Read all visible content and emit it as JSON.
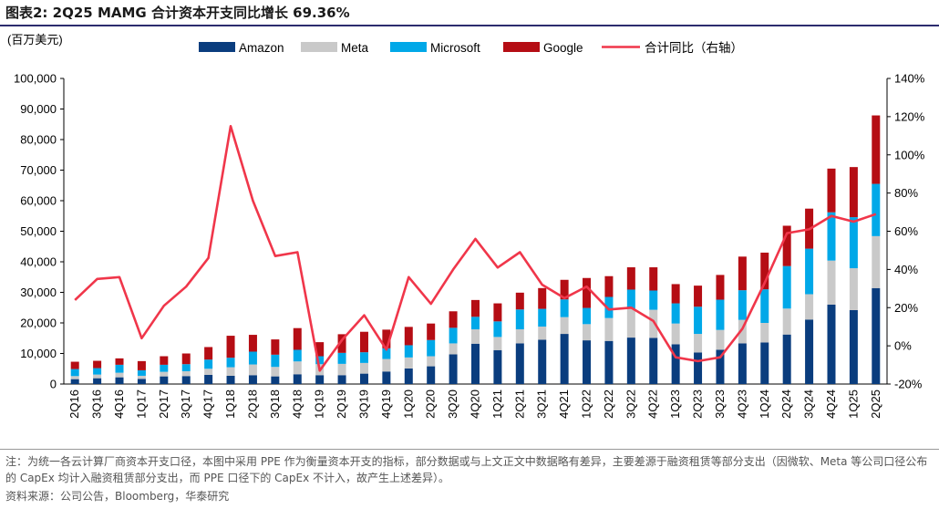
{
  "title": "图表2:   2Q25 MAMG 合计资本开支同比增长 69.36%",
  "note": "注：为统一各云计算厂商资本开支口径，本图中采用 PPE 作为衡量资本开支的指标，部分数据或与上文正文中数据略有差异，主要差源于融资租赁等部分支出（因微软、Meta 等公司口径公布的 CapEx 均计入融资租赁部分支出，而 PPE 口径下的 CapEx 不计入，故产生上述差异）。",
  "source": "资料来源：公司公告，Bloomberg，华泰研究",
  "colors": {
    "Amazon": "#0a3d7e",
    "Meta": "#c9c9c9",
    "Microsoft": "#00a8e8",
    "Google": "#b50d14",
    "yoy": "#f0364a"
  },
  "chart_data": {
    "type": "bar",
    "stacked": true,
    "unit_label": "(百万美元)",
    "categories": [
      "2Q16",
      "3Q16",
      "4Q16",
      "1Q17",
      "2Q17",
      "3Q17",
      "4Q17",
      "1Q18",
      "2Q18",
      "3Q18",
      "4Q18",
      "1Q19",
      "2Q19",
      "3Q19",
      "4Q19",
      "1Q20",
      "2Q20",
      "3Q20",
      "4Q20",
      "1Q21",
      "2Q21",
      "3Q21",
      "4Q21",
      "1Q22",
      "2Q22",
      "3Q22",
      "4Q22",
      "1Q23",
      "2Q23",
      "3Q23",
      "4Q23",
      "1Q24",
      "2Q24",
      "3Q24",
      "4Q24",
      "1Q25",
      "2Q25"
    ],
    "series": [
      {
        "name": "Amazon",
        "values": [
          1600,
          1900,
          2200,
          1700,
          2500,
          2600,
          3000,
          2700,
          2900,
          2500,
          3200,
          2900,
          2900,
          3400,
          4100,
          5100,
          5800,
          9700,
          13200,
          11100,
          13300,
          14500,
          16400,
          14300,
          14100,
          15200,
          15100,
          13000,
          10300,
          11200,
          13300,
          13600,
          16200,
          21100,
          26000,
          24200,
          31400
        ]
      },
      {
        "name": "Meta",
        "values": [
          1000,
          1200,
          1500,
          1000,
          1500,
          1600,
          2000,
          2800,
          3500,
          3100,
          4200,
          3600,
          3700,
          3500,
          4100,
          3600,
          3300,
          3600,
          4700,
          4300,
          4600,
          4300,
          5500,
          5300,
          7500,
          9400,
          9200,
          6800,
          6100,
          6500,
          7700,
          6400,
          8500,
          8300,
          14400,
          13700,
          17000
        ]
      },
      {
        "name": "Microsoft",
        "values": [
          2300,
          2100,
          2600,
          1800,
          2300,
          2300,
          3000,
          3100,
          4200,
          4000,
          3800,
          2600,
          3600,
          3500,
          3500,
          4000,
          5300,
          5100,
          4100,
          5100,
          6500,
          5800,
          5800,
          5300,
          6900,
          6300,
          6300,
          6600,
          8900,
          9900,
          9700,
          11000,
          13900,
          14900,
          15800,
          16700,
          17100
        ]
      },
      {
        "name": "Google",
        "values": [
          2400,
          2400,
          2100,
          3000,
          2800,
          3500,
          4100,
          7200,
          5500,
          5000,
          7100,
          4600,
          6100,
          6700,
          6100,
          6000,
          5400,
          5400,
          5500,
          5900,
          5500,
          6800,
          6400,
          9800,
          6800,
          7300,
          7600,
          6300,
          6900,
          8100,
          11000,
          12000,
          13200,
          13100,
          14300,
          16400,
          22400
        ]
      }
    ],
    "yoy_series": {
      "name": "合计同比（右轴）",
      "values": [
        24,
        35,
        36,
        4,
        21,
        31,
        46,
        115,
        76,
        47,
        49,
        -13,
        3,
        16,
        -2,
        36,
        22,
        40,
        56,
        41,
        49,
        32,
        25,
        31,
        19,
        20,
        13,
        -6,
        -8,
        -6,
        9,
        33,
        59,
        61,
        68,
        65,
        69
      ]
    },
    "ylim": [
      0,
      100000
    ],
    "y_ticks": [
      "0",
      "10,000",
      "20,000",
      "30,000",
      "40,000",
      "50,000",
      "60,000",
      "70,000",
      "80,000",
      "90,000",
      "100,000"
    ],
    "y2lim": [
      -20,
      140
    ],
    "y2_ticks": [
      "-20%",
      "0%",
      "20%",
      "40%",
      "60%",
      "80%",
      "100%",
      "120%",
      "140%"
    ],
    "legend_position": "top"
  }
}
